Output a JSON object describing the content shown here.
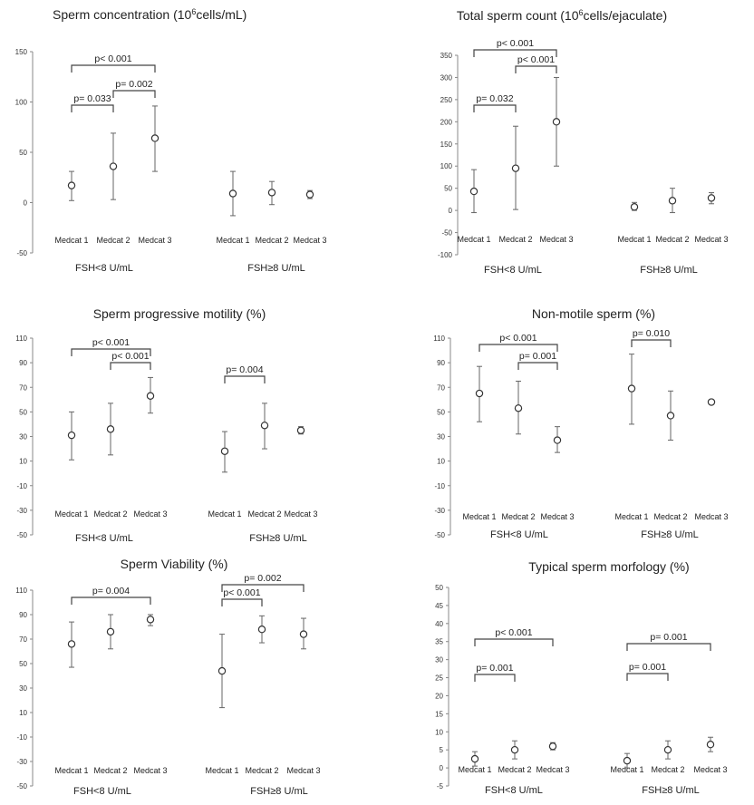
{
  "chart_data": [
    {
      "type": "scatter",
      "title": "Sperm concentration (10",
      "title_sup": "6",
      "title_tail": "cells/mL)",
      "ylim": [
        -50,
        150
      ],
      "yticks": [
        -50,
        0,
        50,
        100,
        150
      ],
      "categories": [
        "Medcat 1",
        "Medcat 2",
        "Medcat 3",
        "Medcat 1",
        "Medcat 2",
        "Medcat 3"
      ],
      "groups": [
        "FSH<8 U/mL",
        "FSH≥8 U/mL"
      ],
      "values": [
        17,
        36,
        64,
        9,
        10,
        8
      ],
      "lower": [
        2,
        3,
        31,
        -13,
        -2,
        4
      ],
      "upper": [
        31,
        69,
        96,
        31,
        21,
        12
      ],
      "pvalues": [
        {
          "from": 0,
          "to": 2,
          "label": "p< 0.001"
        },
        {
          "from": 0,
          "to": 1,
          "label": "p= 0.033"
        },
        {
          "from": 1,
          "to": 2,
          "label": "p= 0.002"
        }
      ]
    },
    {
      "type": "scatter",
      "title": "Total sperm count (10",
      "title_sup": "6",
      "title_tail": "cells/ejaculate)",
      "ylim": [
        -100,
        350
      ],
      "yticks": [
        -100,
        -50,
        0,
        50,
        100,
        150,
        200,
        250,
        300,
        350
      ],
      "categories": [
        "Medcat 1",
        "Medcat 2",
        "Medcat 3",
        "Medcat 1",
        "Medcat 2",
        "Medcat 3"
      ],
      "groups": [
        "FSH<8 U/mL",
        "FSH≥8 U/mL"
      ],
      "values": [
        43,
        95,
        200,
        8,
        22,
        28
      ],
      "lower": [
        -5,
        2,
        100,
        0,
        -5,
        15
      ],
      "upper": [
        92,
        190,
        300,
        18,
        50,
        40
      ],
      "pvalues": [
        {
          "from": 0,
          "to": 2,
          "label": "p< 0.001"
        },
        {
          "from": 1,
          "to": 2,
          "label": "p< 0.001"
        },
        {
          "from": 0,
          "to": 1,
          "label": "p= 0.032"
        }
      ]
    },
    {
      "type": "scatter",
      "title": "Sperm progressive motility (%)",
      "ylim": [
        -50,
        110
      ],
      "yticks": [
        -50,
        -30,
        -10,
        10,
        30,
        50,
        70,
        90,
        110
      ],
      "categories": [
        "Medcat 1",
        "Medcat 2",
        "Medcat 3",
        "Medcat 1",
        "Medcat 2",
        "Medcat 3"
      ],
      "groups": [
        "FSH<8 U/mL",
        "FSH≥8 U/mL"
      ],
      "values": [
        31,
        36,
        63,
        18,
        39,
        35
      ],
      "lower": [
        11,
        15,
        49,
        1,
        20,
        32
      ],
      "upper": [
        50,
        57,
        78,
        34,
        57,
        38
      ],
      "pvalues": [
        {
          "from": 0,
          "to": 2,
          "label": "p< 0.001"
        },
        {
          "from": 1,
          "to": 2,
          "label": "p< 0.001"
        },
        {
          "from": 3,
          "to": 4,
          "label": "p= 0.004"
        }
      ]
    },
    {
      "type": "scatter",
      "title": "Non-motile sperm (%)",
      "ylim": [
        -50,
        110
      ],
      "yticks": [
        -50,
        -30,
        -10,
        10,
        30,
        50,
        70,
        90,
        110
      ],
      "categories": [
        "Medcat 1",
        "Medcat 2",
        "Medcat 3",
        "Medcat 1",
        "Medcat 2",
        "Medcat 3"
      ],
      "groups": [
        "FSH<8 U/mL",
        "FSH≥8 U/mL"
      ],
      "values": [
        65,
        53,
        27,
        69,
        47,
        58
      ],
      "lower": [
        42,
        32,
        17,
        40,
        27,
        58
      ],
      "upper": [
        87,
        75,
        38,
        97,
        67,
        58
      ],
      "pvalues": [
        {
          "from": 0,
          "to": 2,
          "label": "p< 0.001"
        },
        {
          "from": 1,
          "to": 2,
          "label": "p= 0.001"
        },
        {
          "from": 3,
          "to": 4,
          "label": "p= 0.010"
        }
      ]
    },
    {
      "type": "scatter",
      "title": "Sperm Viability (%)",
      "ylim": [
        -50,
        110
      ],
      "yticks": [
        -50,
        -30,
        -10,
        10,
        30,
        50,
        70,
        90,
        110
      ],
      "categories": [
        "Medcat 1",
        "Medcat 2",
        "Medcat 3",
        "Medcat 1",
        "Medcat 2",
        "Medcat 3"
      ],
      "groups": [
        "FSH<8 U/mL",
        "FSH≥8 U/mL"
      ],
      "values": [
        66,
        76,
        86,
        44,
        78,
        74
      ],
      "lower": [
        47,
        62,
        81,
        14,
        67,
        62
      ],
      "upper": [
        84,
        90,
        90,
        74,
        89,
        87
      ],
      "pvalues": [
        {
          "from": 0,
          "to": 2,
          "label": "p= 0.004"
        },
        {
          "from": 3,
          "to": 5,
          "label": "p= 0.002"
        },
        {
          "from": 3,
          "to": 4,
          "label": "p< 0.001"
        }
      ]
    },
    {
      "type": "scatter",
      "title": "Typical sperm morfology (%)",
      "ylim": [
        -5,
        50
      ],
      "yticks": [
        -5,
        0,
        5,
        10,
        15,
        20,
        25,
        30,
        35,
        40,
        45,
        50
      ],
      "categories": [
        "Medcat 1",
        "Medcat 2",
        "Medcat 3",
        "Medcat 1",
        "Medcat 2",
        "Medcat 3"
      ],
      "groups": [
        "FSH<8 U/mL",
        "FSH≥8 U/mL"
      ],
      "values": [
        2.5,
        5,
        6,
        2,
        5,
        6.5
      ],
      "lower": [
        0.5,
        2.5,
        5,
        0,
        2.5,
        4.5
      ],
      "upper": [
        4.5,
        7.5,
        7,
        4,
        7.5,
        8.5
      ],
      "pvalues": [
        {
          "from": 0,
          "to": 2,
          "label": "p< 0.001"
        },
        {
          "from": 0,
          "to": 1,
          "label": "p= 0.001"
        },
        {
          "from": 3,
          "to": 5,
          "label": "p= 0.001"
        },
        {
          "from": 3,
          "to": 4,
          "label": "p= 0.001"
        }
      ]
    }
  ]
}
